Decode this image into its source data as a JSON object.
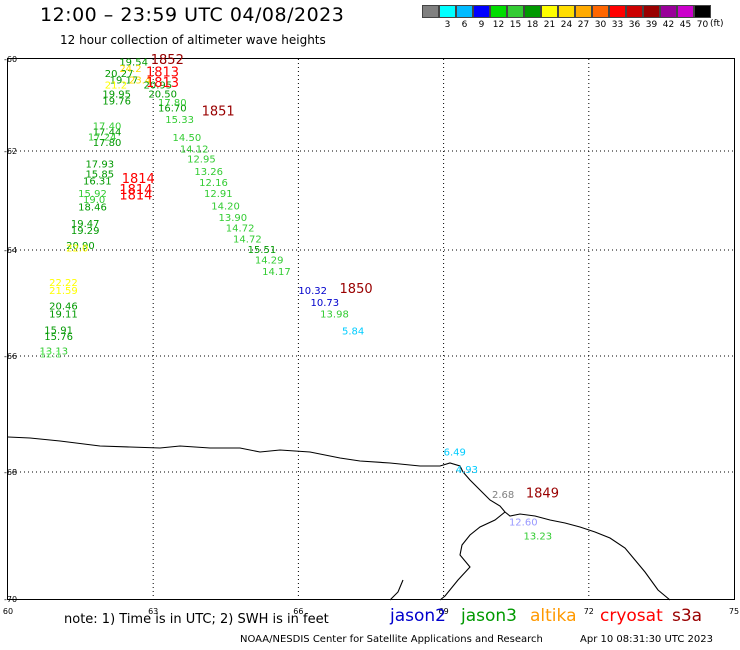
{
  "title": "12:00 – 23:59 UTC 04/08/2023",
  "subtitle": "12 hour collection of altimeter wave heights",
  "legend": {
    "unit": "(ft)",
    "items": [
      {
        "label": "",
        "color": "#808080"
      },
      {
        "label": "3",
        "color": "#00ffff"
      },
      {
        "label": "6",
        "color": "#00bbff"
      },
      {
        "label": "9",
        "color": "#0000ff"
      },
      {
        "label": "12",
        "color": "#00dd00"
      },
      {
        "label": "15",
        "color": "#33cc33"
      },
      {
        "label": "18",
        "color": "#009900"
      },
      {
        "label": "21",
        "color": "#ffff00"
      },
      {
        "label": "24",
        "color": "#ffdd00"
      },
      {
        "label": "27",
        "color": "#ffaa00"
      },
      {
        "label": "30",
        "color": "#ff6600"
      },
      {
        "label": "33",
        "color": "#ff0000"
      },
      {
        "label": "36",
        "color": "#cc0000"
      },
      {
        "label": "39",
        "color": "#990000"
      },
      {
        "label": "42",
        "color": "#990099"
      },
      {
        "label": "45",
        "color": "#cc00cc"
      },
      {
        "label": "70",
        "color": "#000000"
      }
    ]
  },
  "axes": {
    "lat_labels": [
      "-60",
      "-62",
      "-64",
      "-66",
      "-68",
      "-70"
    ],
    "lon_labels": [
      "60",
      "63",
      "66",
      "69",
      "72",
      "75"
    ]
  },
  "note": "note:  1) Time is in UTC;  2) SWH is in feet",
  "satellites": [
    {
      "name": "jason2",
      "color": "#0000cc"
    },
    {
      "name": "jason3",
      "color": "#009900"
    },
    {
      "name": "altika",
      "color": "#ff9900"
    },
    {
      "name": "cryosat",
      "color": "#ff0000"
    },
    {
      "name": "s3a",
      "color": "#990000"
    }
  ],
  "credit": "NOAA/NESDIS Center for Satellite Applications and Research",
  "credit_date": "Apr 10 08:31:30 UTC 2023",
  "observations": [
    {
      "lon": 62.3,
      "lat": -60.05,
      "text": "19.54",
      "color": "#009900"
    },
    {
      "lon": 62.0,
      "lat": -60.3,
      "text": "20.27",
      "color": "#009900"
    },
    {
      "lon": 62.3,
      "lat": -60.2,
      "text": "24.2",
      "color": "#ffdd00"
    },
    {
      "lon": 62.1,
      "lat": -60.45,
      "text": "19.17",
      "color": "#009900"
    },
    {
      "lon": 62.0,
      "lat": -60.55,
      "text": "21.2",
      "color": "#ffff00"
    },
    {
      "lon": 62.5,
      "lat": -60.45,
      "text": "23.4",
      "color": "#ffdd00"
    },
    {
      "lon": 62.8,
      "lat": -60.55,
      "text": "20.95",
      "color": "#009900"
    },
    {
      "lon": 61.95,
      "lat": -60.75,
      "text": "19.95",
      "color": "#009900"
    },
    {
      "lon": 62.9,
      "lat": -60.75,
      "text": "20.50",
      "color": "#009900"
    },
    {
      "lon": 61.95,
      "lat": -60.9,
      "text": "19.76",
      "color": "#009900"
    },
    {
      "lon": 63.1,
      "lat": -60.93,
      "text": "17.80",
      "color": "#33cc33"
    },
    {
      "lon": 63.1,
      "lat": -61.05,
      "text": "16.70",
      "color": "#009900"
    },
    {
      "lon": 63.25,
      "lat": -61.3,
      "text": "15.33",
      "color": "#33cc33"
    },
    {
      "lon": 61.75,
      "lat": -61.45,
      "text": "17.40",
      "color": "#33cc33"
    },
    {
      "lon": 61.75,
      "lat": -61.58,
      "text": "17.44",
      "color": "#009900"
    },
    {
      "lon": 63.4,
      "lat": -61.7,
      "text": "14.50",
      "color": "#33cc33"
    },
    {
      "lon": 61.65,
      "lat": -61.68,
      "text": "17.24",
      "color": "#33cc33"
    },
    {
      "lon": 61.75,
      "lat": -61.8,
      "text": "17.80",
      "color": "#009900"
    },
    {
      "lon": 63.55,
      "lat": -61.95,
      "text": "14.12",
      "color": "#33cc33"
    },
    {
      "lon": 63.7,
      "lat": -62.15,
      "text": "12.95",
      "color": "#33cc33"
    },
    {
      "lon": 61.6,
      "lat": -62.25,
      "text": "17.93",
      "color": "#009900"
    },
    {
      "lon": 63.85,
      "lat": -62.4,
      "text": "13.26",
      "color": "#33cc33"
    },
    {
      "lon": 61.6,
      "lat": -62.45,
      "text": "15.85",
      "color": "#009900"
    },
    {
      "lon": 61.55,
      "lat": -62.6,
      "text": "16.31",
      "color": "#009900"
    },
    {
      "lon": 63.95,
      "lat": -62.63,
      "text": "12.16",
      "color": "#33cc33"
    },
    {
      "lon": 61.45,
      "lat": -62.85,
      "text": "15.92",
      "color": "#33cc33"
    },
    {
      "lon": 64.05,
      "lat": -62.85,
      "text": "12.91",
      "color": "#33cc33"
    },
    {
      "lon": 61.55,
      "lat": -62.97,
      "text": "19.0",
      "color": "#33cc33"
    },
    {
      "lon": 61.45,
      "lat": -63.12,
      "text": "18.46",
      "color": "#009900"
    },
    {
      "lon": 64.2,
      "lat": -63.1,
      "text": "14.20",
      "color": "#33cc33"
    },
    {
      "lon": 64.35,
      "lat": -63.33,
      "text": "13.90",
      "color": "#33cc33"
    },
    {
      "lon": 61.3,
      "lat": -63.45,
      "text": "19.47",
      "color": "#009900"
    },
    {
      "lon": 64.5,
      "lat": -63.55,
      "text": "14.72",
      "color": "#33cc33"
    },
    {
      "lon": 61.3,
      "lat": -63.6,
      "text": "19.29",
      "color": "#009900"
    },
    {
      "lon": 64.65,
      "lat": -63.77,
      "text": "14.72",
      "color": "#33cc33"
    },
    {
      "lon": 61.2,
      "lat": -63.9,
      "text": "20.90",
      "color": "#009900"
    },
    {
      "lon": 61.2,
      "lat": -63.95,
      "text": "22.0",
      "color": "#ffff00"
    },
    {
      "lon": 64.95,
      "lat": -63.98,
      "text": "15.51",
      "color": "#009900"
    },
    {
      "lon": 65.1,
      "lat": -64.18,
      "text": "14.29",
      "color": "#33cc33"
    },
    {
      "lon": 65.25,
      "lat": -64.4,
      "text": "14.17",
      "color": "#33cc33"
    },
    {
      "lon": 60.85,
      "lat": -64.6,
      "text": "22.22",
      "color": "#ffff00"
    },
    {
      "lon": 60.85,
      "lat": -64.75,
      "text": "21.59",
      "color": "#ffff00"
    },
    {
      "lon": 66.0,
      "lat": -64.75,
      "text": "10.32",
      "color": "#0000cc"
    },
    {
      "lon": 66.25,
      "lat": -64.98,
      "text": "10.73",
      "color": "#0000cc"
    },
    {
      "lon": 60.85,
      "lat": -65.05,
      "text": "20.46",
      "color": "#009900"
    },
    {
      "lon": 60.85,
      "lat": -65.2,
      "text": "19.11",
      "color": "#009900"
    },
    {
      "lon": 66.45,
      "lat": -65.2,
      "text": "13.98",
      "color": "#33cc33"
    },
    {
      "lon": 60.75,
      "lat": -65.5,
      "text": "15.91",
      "color": "#009900"
    },
    {
      "lon": 66.9,
      "lat": -65.52,
      "text": "5.84",
      "color": "#00ccff"
    },
    {
      "lon": 60.75,
      "lat": -65.62,
      "text": "15.76",
      "color": "#009900"
    },
    {
      "lon": 60.65,
      "lat": -65.9,
      "text": "13.13",
      "color": "#33cc33"
    },
    {
      "lon": 60.65,
      "lat": -65.95,
      "text": "12.1",
      "color": "#66ee66"
    },
    {
      "lon": 69.0,
      "lat": -67.65,
      "text": "6.49",
      "color": "#00ccff"
    },
    {
      "lon": 69.25,
      "lat": -67.95,
      "text": "4.93",
      "color": "#00ccff"
    },
    {
      "lon": 70.0,
      "lat": -68.35,
      "text": "2.68",
      "color": "#808080"
    },
    {
      "lon": 70.35,
      "lat": -68.78,
      "text": "12.60",
      "color": "#9999ff"
    },
    {
      "lon": 70.65,
      "lat": -69.0,
      "text": "13.23",
      "color": "#33cc33"
    }
  ],
  "time_labels": [
    {
      "lon": 62.95,
      "lat": -60.0,
      "text": "1852",
      "color": "#990000"
    },
    {
      "lon": 62.85,
      "lat": -60.27,
      "text": "1813",
      "color": "#ff0000"
    },
    {
      "lon": 62.85,
      "lat": -60.5,
      "text": "1813",
      "color": "#ff0000"
    },
    {
      "lon": 64.0,
      "lat": -61.12,
      "text": "1851",
      "color": "#990000"
    },
    {
      "lon": 62.35,
      "lat": -62.55,
      "text": "1814",
      "color": "#ff0000"
    },
    {
      "lon": 62.3,
      "lat": -62.77,
      "text": "1814",
      "color": "#ff0000"
    },
    {
      "lon": 62.3,
      "lat": -62.88,
      "text": "1814",
      "color": "#ff0000"
    },
    {
      "lon": 66.85,
      "lat": -64.72,
      "text": "1850",
      "color": "#990000"
    },
    {
      "lon": 70.7,
      "lat": -68.32,
      "text": "1849",
      "color": "#990000"
    }
  ]
}
